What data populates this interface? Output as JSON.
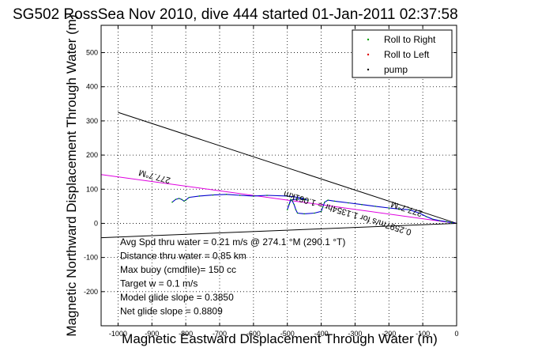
{
  "chart_data": {
    "type": "line",
    "title": "SG502 RossSea Nov 2010, dive 444 started 01-Jan-2011 02:37:58",
    "xlabel": "Magnetic Eastward Displacement Through Water (m)",
    "ylabel": "Magnetic Northward Displacement Through Water (m)",
    "xlim": [
      -1050,
      0
    ],
    "ylim": [
      -300,
      580
    ],
    "xticks": [
      -1000,
      -900,
      -800,
      -700,
      -600,
      -500,
      -400,
      -300,
      -200,
      -100,
      0
    ],
    "yticks": [
      -200,
      -100,
      0,
      100,
      200,
      300,
      400,
      500
    ],
    "grid": true,
    "legend_position": "top-right",
    "legend": [
      {
        "label": "Roll to Right",
        "color": "#00a000",
        "marker": "."
      },
      {
        "label": "Roll to Left",
        "color": "#e00000",
        "marker": "."
      },
      {
        "label": "pump",
        "color": "#000000",
        "marker": "."
      }
    ],
    "reference_lines": [
      {
        "name": "mean-heading-line",
        "color": "#000000",
        "x": [
          -1000,
          0
        ],
        "y": [
          325,
          0
        ]
      },
      {
        "name": "lower-heading-line",
        "color": "#000000",
        "x": [
          -1050,
          0
        ],
        "y": [
          -42,
          0
        ]
      },
      {
        "name": "magenta-heading-line",
        "color": "#e000e0",
        "x": [
          -1050,
          0
        ],
        "y": [
          143,
          0
        ]
      }
    ],
    "series": [
      {
        "color": "#0000cc",
        "x": [
          0,
          -15,
          -30,
          -50,
          -70,
          -90,
          -110,
          -140,
          -170,
          -200,
          -240,
          -280,
          -320,
          -360,
          -380,
          -390,
          -395,
          -400,
          -420,
          -450,
          -470,
          -475,
          -480,
          -485,
          -490,
          -495,
          -500,
          -490,
          -470,
          -450,
          -440,
          -460,
          -500,
          -560,
          -600,
          -640,
          -680,
          -720,
          -760,
          -790,
          -800,
          -805,
          -812,
          -820,
          -830,
          -840
        ],
        "y": [
          0,
          2,
          5,
          8,
          12,
          20,
          30,
          40,
          42,
          45,
          50,
          55,
          60,
          65,
          68,
          62,
          48,
          35,
          30,
          28,
          30,
          40,
          55,
          65,
          70,
          55,
          40,
          68,
          72,
          70,
          68,
          75,
          80,
          82,
          80,
          82,
          85,
          83,
          80,
          76,
          68,
          65,
          70,
          73,
          70,
          62
        ]
      }
    ],
    "annotations": [
      {
        "text": "277.7°M",
        "x": -890,
        "y": 145,
        "rotation": 195
      },
      {
        "text": "277.7°M",
        "x": -145,
        "y": 50,
        "rotation": 198
      },
      {
        "text": "0.2597m/s for 1.1354hr = 1.061km",
        "x": -320,
        "y": 38,
        "rotation": 197
      }
    ],
    "summary_lines": [
      "Avg Spd thru water =  0.21 m/s @ 274.1   °M (290.1 °T)",
      "Distance thru water =  0.85 km",
      "Max buoy (cmdfile)= 150 cc",
      "Target w = 0.1 m/s",
      "Model glide slope = 0.3850",
      "Net glide slope = 0.8809"
    ]
  }
}
